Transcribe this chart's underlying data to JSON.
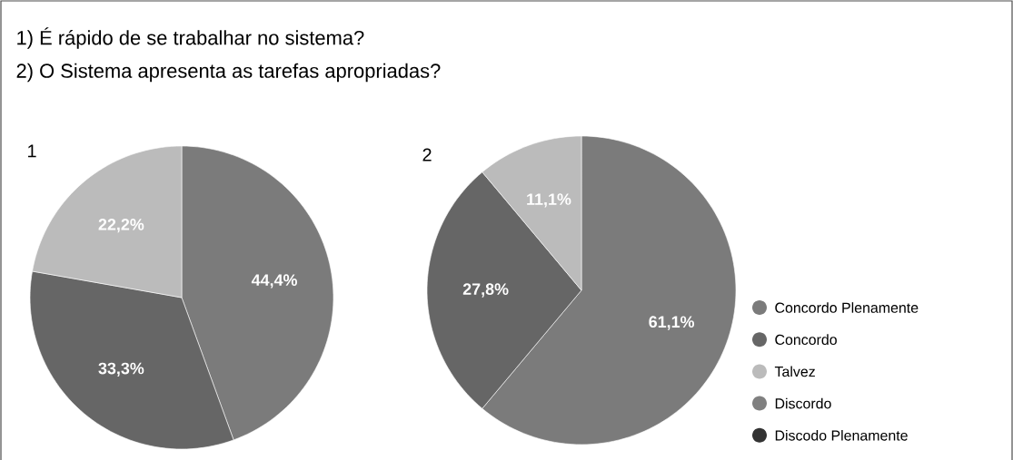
{
  "chart_data": [
    {
      "type": "pie",
      "title": "1",
      "annotations": [
        "1) É rápido de se trabalhar no sistema?",
        "2) O Sistema apresenta as tarefas apropriadas?"
      ],
      "categories": [
        null,
        null,
        null,
        null,
        null
      ],
      "values": [
        44.4,
        33.3,
        22.2,
        0,
        0
      ],
      "colors": [
        "#7b7b7b",
        "#666666",
        "#bbbbbb",
        "#808080",
        "#333333"
      ],
      "value_labels": [
        "44,4%",
        "33,3%",
        "22,2%",
        null,
        null
      ],
      "legend": false
    },
    {
      "type": "pie",
      "title": "2",
      "categories": [
        "Concordo Plenamente",
        "Concordo",
        "Talvez",
        "Discordo",
        "Discodo Plenamente"
      ],
      "values": [
        61.1,
        27.8,
        11.1,
        0,
        0
      ],
      "colors": [
        "#7b7b7b",
        "#666666",
        "#bbbbbb",
        "#808080",
        "#333333"
      ],
      "value_labels": [
        "61,1%",
        "27,8%",
        "11,1%",
        null,
        null
      ],
      "legend": "right"
    }
  ]
}
